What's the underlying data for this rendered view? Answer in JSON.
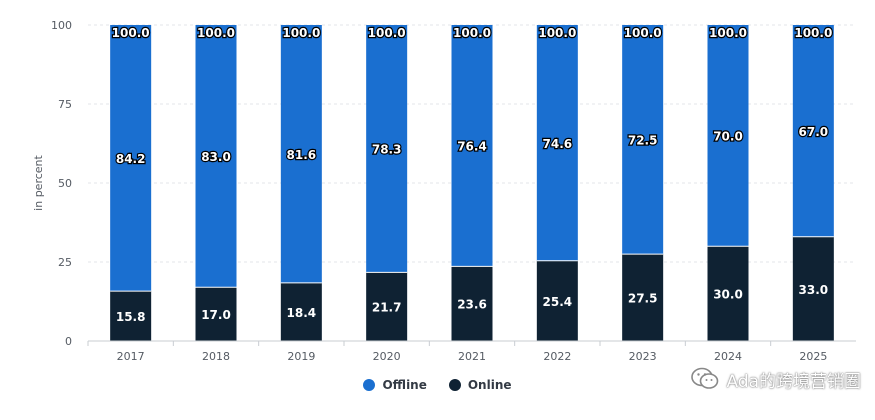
{
  "chart_data": {
    "type": "bar",
    "stacked": true,
    "categories": [
      "2017",
      "2018",
      "2019",
      "2020",
      "2021",
      "2022",
      "2023",
      "2024",
      "2025"
    ],
    "series": [
      {
        "name": "Online",
        "color": "#0f2233",
        "values": [
          15.8,
          17.0,
          18.4,
          21.7,
          23.6,
          25.4,
          27.5,
          30.0,
          33.0
        ]
      },
      {
        "name": "Offline",
        "color": "#1a6fd0",
        "values": [
          84.2,
          83.0,
          81.6,
          78.3,
          76.4,
          74.6,
          72.5,
          70.0,
          67.0
        ]
      }
    ],
    "totals": [
      100.0,
      100.0,
      100.0,
      100.0,
      100.0,
      100.0,
      100.0,
      100.0,
      100.0
    ],
    "ylabel": "in percent",
    "ylim": [
      0,
      100
    ],
    "yticks": [
      0,
      25,
      50,
      75,
      100
    ],
    "grid": true,
    "legend_position": "bottom"
  },
  "legend": [
    {
      "label": "Offline",
      "color": "#1a6fd0"
    },
    {
      "label": "Online",
      "color": "#0f2233"
    }
  ],
  "watermark": {
    "text": "Ada的跨境营销圈",
    "icon": "wechat-icon"
  }
}
